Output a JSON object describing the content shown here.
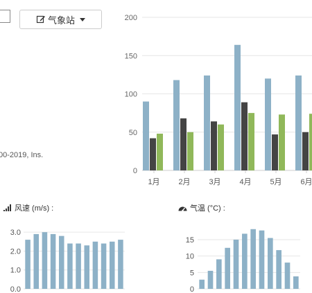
{
  "header": {
    "station_button_label": "气象站"
  },
  "footer": {
    "copyright_fragment": "00-2019, Ins."
  },
  "panels": {
    "wind": {
      "title": "风速 (m/s) :"
    },
    "temp": {
      "title": "气温 (°C) :"
    }
  },
  "colors": {
    "blue": "#8db1c7",
    "dark": "#444444",
    "green": "#90b85a"
  },
  "chart_data": [
    {
      "type": "bar",
      "categories": [
        "1月",
        "2月",
        "3月",
        "4月",
        "5月",
        "6月"
      ],
      "series": [
        {
          "values": [
            90,
            118,
            124,
            164,
            120,
            124
          ],
          "color": "#8db1c7"
        },
        {
          "values": [
            42,
            68,
            64,
            89,
            47,
            50
          ],
          "color": "#444444"
        },
        {
          "values": [
            48,
            50,
            60,
            75,
            73,
            74
          ],
          "color": "#90b85a"
        }
      ],
      "yticks": [
        0,
        50,
        100,
        150,
        200
      ],
      "ylim": [
        0,
        200
      ],
      "grid": true
    },
    {
      "type": "bar",
      "values": [
        2.6,
        2.9,
        3.0,
        2.9,
        2.8,
        2.4,
        2.4,
        2.3,
        2.5,
        2.4,
        2.5,
        2.6
      ],
      "yticks": [
        "0.0",
        "1.0",
        "2.0",
        "3.0"
      ],
      "ylim": [
        0,
        3.3
      ],
      "grid": true,
      "color": "#8db1c7"
    },
    {
      "type": "bar",
      "values": [
        2.8,
        5.5,
        9.0,
        12.5,
        15.0,
        16.8,
        18.2,
        17.8,
        15.5,
        11.8,
        8.0,
        3.8
      ],
      "yticks": [
        "0",
        "5",
        "10",
        "15"
      ],
      "ylim": [
        0,
        19
      ],
      "grid": true,
      "color": "#8db1c7"
    }
  ]
}
